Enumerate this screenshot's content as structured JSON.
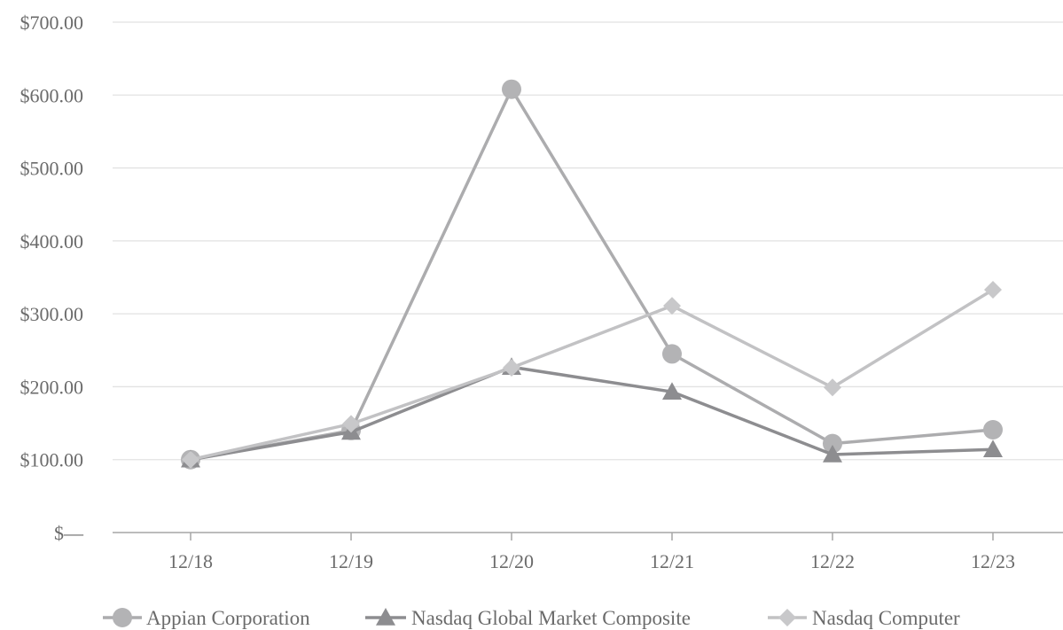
{
  "chart_data": {
    "type": "line",
    "title": "",
    "xlabel": "",
    "ylabel": "",
    "categories": [
      "12/18",
      "12/19",
      "12/20",
      "12/21",
      "12/22",
      "12/23"
    ],
    "y_ticks": [
      "$—",
      "$100.00",
      "$200.00",
      "$300.00",
      "$400.00",
      "$500.00",
      "$600.00",
      "$700.00"
    ],
    "ylim": [
      0,
      700
    ],
    "grid": true,
    "legend_position": "bottom",
    "series": [
      {
        "name": "Appian Corporation",
        "values": [
          100,
          140,
          608,
          245,
          122,
          141
        ],
        "marker": "circle",
        "color": "#b3b3b5",
        "line_color": "#acacae"
      },
      {
        "name": "Nasdaq Global Market Composite",
        "values": [
          100,
          138,
          227,
          193,
          107,
          114
        ],
        "marker": "triangle",
        "color": "#8d8d90",
        "line_color": "#8d8d90"
      },
      {
        "name": "Nasdaq Computer",
        "values": [
          100,
          149,
          226,
          311,
          199,
          333
        ],
        "marker": "diamond",
        "color": "#c8c8ca",
        "line_color": "#c2c2c4"
      }
    ]
  }
}
